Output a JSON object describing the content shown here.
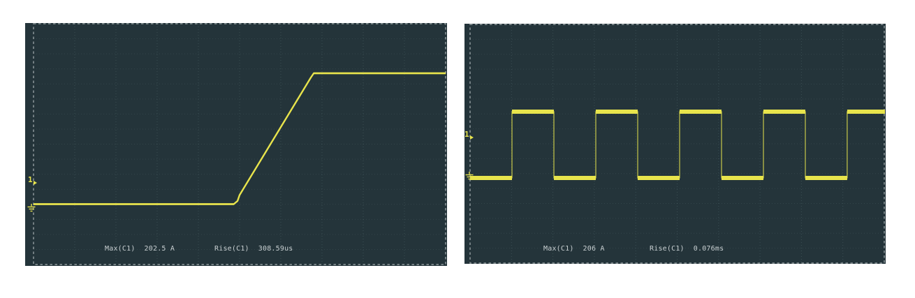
{
  "colors": {
    "scope-bg": "#24343a",
    "trace": "#e8e44c",
    "osd-text": "#c9d0d2",
    "border-dash": "#98a2a4"
  },
  "scopes": [
    {
      "id": "ramp-capture",
      "channel": "1",
      "measurements": [
        {
          "label": "Max(C1)",
          "value": "202.5 A"
        },
        {
          "label": "Rise(C1)",
          "value": "308.59us"
        }
      ],
      "chart_data": {
        "type": "line",
        "series_name": "C1",
        "x_unit": "divisions (time)",
        "y_unit": "A",
        "xlim": [
          0,
          10
        ],
        "grid": "dotted, 10 x 8 divisions",
        "points": [
          [
            0,
            0
          ],
          [
            4.86,
            0
          ],
          [
            4.95,
            5
          ],
          [
            5.0,
            14
          ],
          [
            6.73,
            196
          ],
          [
            6.8,
            202.5
          ],
          [
            10,
            202.5
          ]
        ],
        "annotations": {
          "max_c1": "202.5 A",
          "rise_c1": "308.59us"
        },
        "description": "Current ramp: flat at 0 A, linear rise starting ~div 4.9, flat top ~202.5 A from ~div 6.8 to right edge"
      }
    },
    {
      "id": "square-wave-capture",
      "channel": "1",
      "measurements": [
        {
          "label": "Max(C1)",
          "value": "206 A"
        },
        {
          "label": "Rise(C1)",
          "value": "0.076ms"
        }
      ],
      "chart_data": {
        "type": "line",
        "series_name": "C1",
        "x_unit": "divisions (time)",
        "y_unit": "A",
        "xlim": [
          0,
          10
        ],
        "grid": "dotted, 10 x 8 divisions",
        "points": [
          [
            0,
            0
          ],
          [
            1.01,
            0
          ],
          [
            1.01,
            206
          ],
          [
            2.02,
            206
          ],
          [
            2.02,
            0
          ],
          [
            3.03,
            0
          ],
          [
            3.03,
            206
          ],
          [
            4.04,
            206
          ],
          [
            4.04,
            0
          ],
          [
            5.05,
            0
          ],
          [
            5.05,
            206
          ],
          [
            6.06,
            206
          ],
          [
            6.06,
            0
          ],
          [
            7.07,
            0
          ],
          [
            7.07,
            206
          ],
          [
            8.08,
            206
          ],
          [
            8.08,
            0
          ],
          [
            9.09,
            0
          ],
          [
            9.09,
            206
          ],
          [
            10,
            206
          ]
        ],
        "annotations": {
          "max_c1": "206 A",
          "rise_c1": "0.076ms"
        },
        "description": "Square wave toggling between ~0 A and ~206 A, period 2 divisions, 50% duty cycle"
      }
    }
  ]
}
